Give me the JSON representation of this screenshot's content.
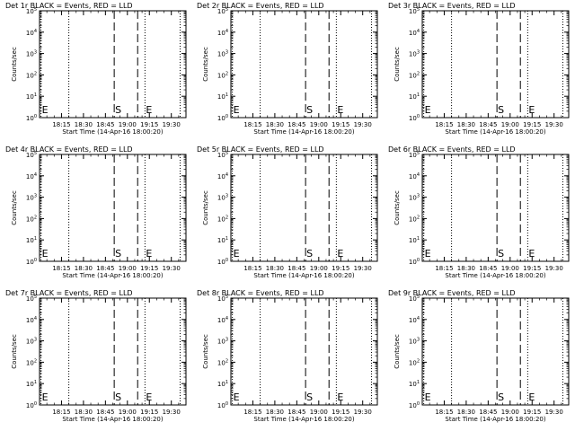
{
  "chart_data": {
    "type": "line",
    "x_tick_labels": [
      "18:15",
      "18:30",
      "18:45",
      "19:00",
      "19:15",
      "19:30"
    ],
    "x_tick_minutes": [
      15,
      30,
      45,
      60,
      75,
      90
    ],
    "x_range_minutes": [
      0,
      100
    ],
    "xlabel": "Start Time (14-Apr-16 18:00:20)",
    "ylabel": "Counts/sec",
    "y_scale": "log",
    "y_ticks": [
      {
        "label": "10",
        "exp": "0"
      },
      {
        "label": "10",
        "exp": "1"
      },
      {
        "label": "10",
        "exp": "2"
      },
      {
        "label": "10",
        "exp": "3"
      },
      {
        "label": "10",
        "exp": "4"
      },
      {
        "label": "10",
        "exp": "5"
      }
    ],
    "markers": [
      {
        "label": "E",
        "minute": 1,
        "style": "dotted"
      },
      {
        "label": "S",
        "minute": 51,
        "style": "dashed"
      },
      {
        "label": "",
        "minute": 67,
        "style": "dashed"
      },
      {
        "label": "E",
        "minute": 72,
        "style": "dotted"
      },
      {
        "label": "",
        "minute": 20,
        "style": "dotted"
      },
      {
        "label": "",
        "minute": 96,
        "style": "dotted"
      }
    ],
    "series": [],
    "panels": [
      {
        "title": "Det 1r BLACK = Events, RED = LLD"
      },
      {
        "title": "Det 2r BLACK = Events, RED = LLD"
      },
      {
        "title": "Det 3r BLACK = Events, RED = LLD"
      },
      {
        "title": "Det 4r BLACK = Events, RED = LLD"
      },
      {
        "title": "Det 5r BLACK = Events, RED = LLD"
      },
      {
        "title": "Det 6r BLACK = Events, RED = LLD"
      },
      {
        "title": "Det 7r BLACK = Events, RED = LLD"
      },
      {
        "title": "Det 8r BLACK = Events, RED = LLD"
      },
      {
        "title": "Det 9r BLACK = Events, RED = LLD"
      }
    ]
  }
}
